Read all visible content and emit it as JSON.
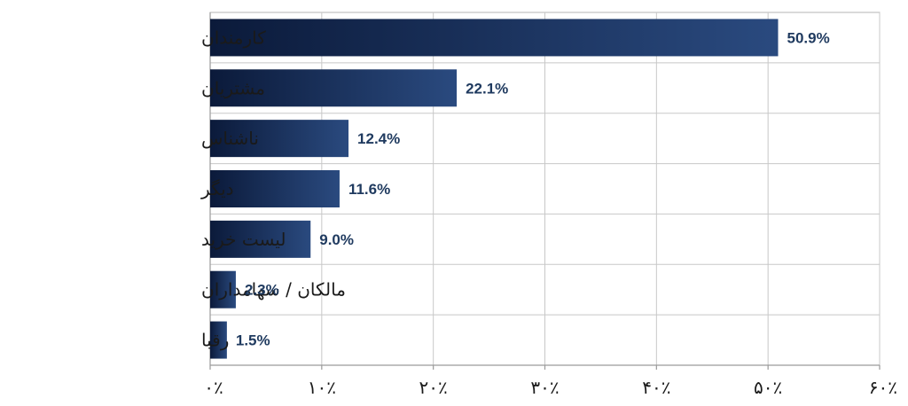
{
  "chart_data": {
    "type": "bar",
    "orientation": "horizontal",
    "categories": [
      "کارمندان",
      "مشتریان",
      "ناشناس",
      "دیگر",
      "لیست خرید",
      "مالکان / سهامداران",
      "رقبا"
    ],
    "values": [
      50.9,
      22.1,
      12.4,
      11.6,
      9.0,
      2.3,
      1.5
    ],
    "value_labels": [
      "50.9%",
      "22.1%",
      "12.4%",
      "11.6%",
      "9.0%",
      "2.3%",
      "1.5%"
    ],
    "x_ticks": [
      0,
      10,
      20,
      30,
      40,
      50,
      60
    ],
    "x_tick_labels": [
      "۰٪",
      "۱۰٪",
      "۲۰٪",
      "۳۰٪",
      "۴۰٪",
      "۵۰٪",
      "۶۰٪"
    ],
    "xlim": [
      0,
      60
    ],
    "grid": true,
    "colors": {
      "bar_dark": "#0b1a3a",
      "bar_light": "#2a4a7f",
      "value_text": "#1f3a5f"
    }
  }
}
